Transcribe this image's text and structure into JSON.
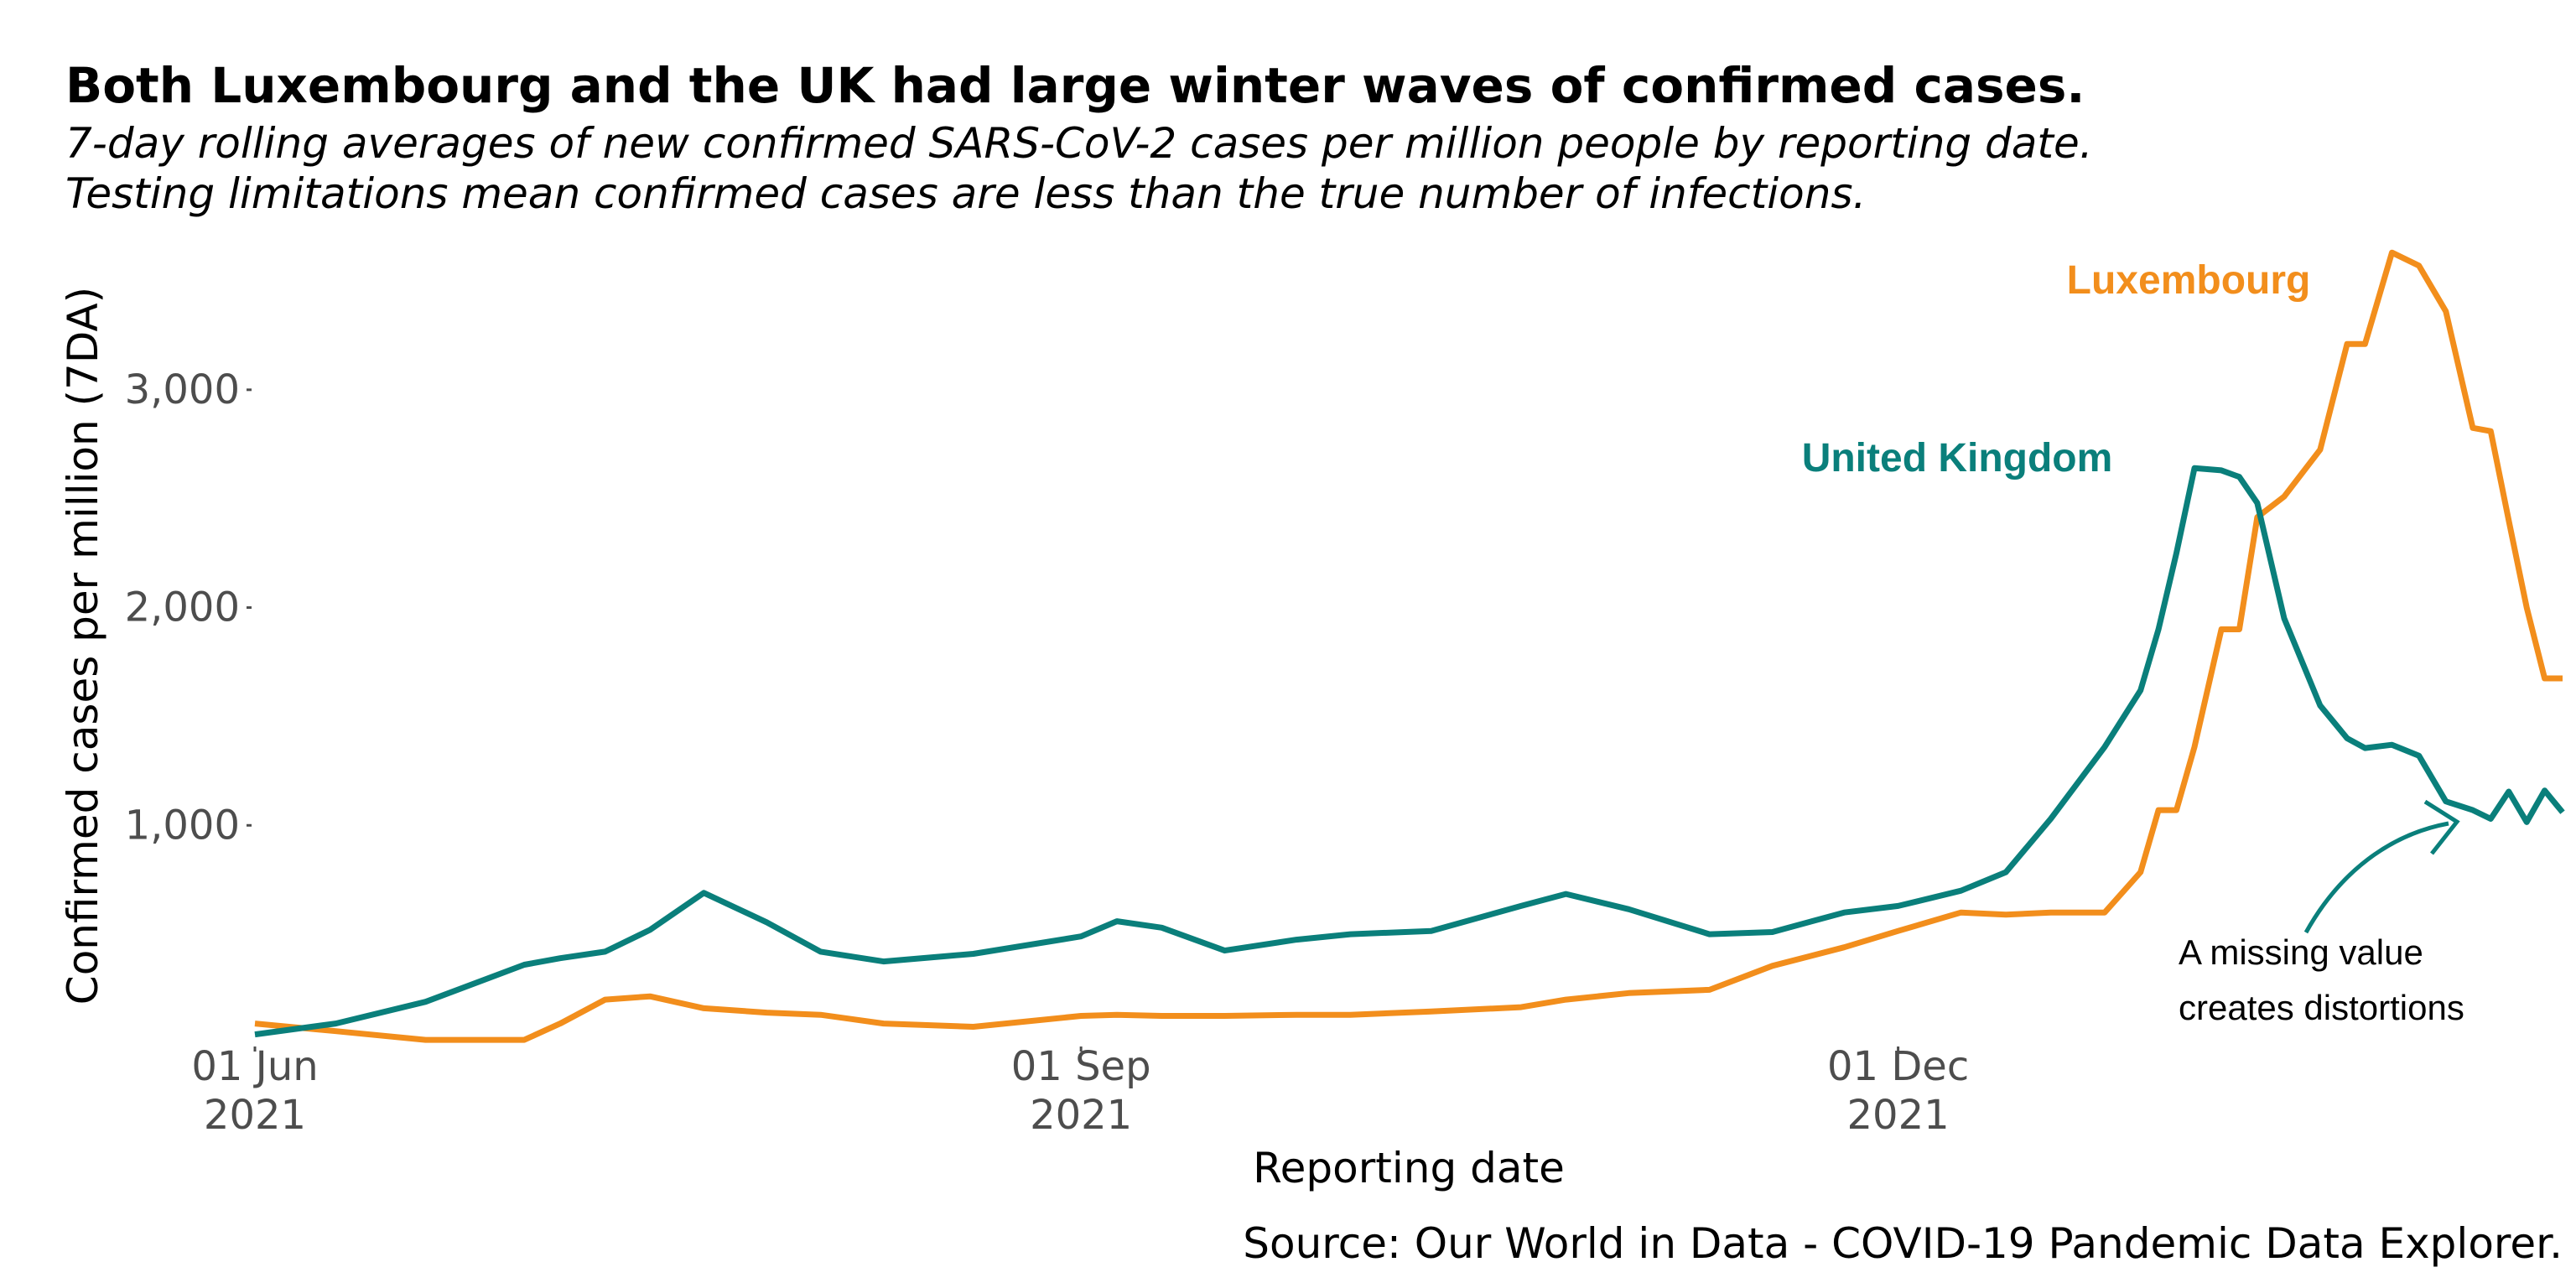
{
  "chart_data": {
    "type": "line",
    "title": "Both Luxembourg and the UK had large winter waves of confirmed cases.",
    "subtitle": [
      "7-day rolling averages of new confirmed SARS-CoV-2 cases per million people by reporting date.",
      "Testing limitations mean confirmed cases are less than the true number of infections."
    ],
    "x_label": "Reporting date",
    "y_label": "Confirmed cases per million (7DA)",
    "source": "Source: Our World in Data - COVID-19 Pandemic Data Explorer.",
    "annotation": [
      "A missing value",
      "creates distortions"
    ],
    "x": [
      "2021-06-01",
      "2021-06-10",
      "2021-06-20",
      "2021-07-01",
      "2021-07-05",
      "2021-07-10",
      "2021-07-15",
      "2021-07-21",
      "2021-07-28",
      "2021-08-03",
      "2021-08-10",
      "2021-08-20",
      "2021-09-01",
      "2021-09-05",
      "2021-09-10",
      "2021-09-17",
      "2021-09-25",
      "2021-10-01",
      "2021-10-10",
      "2021-10-20",
      "2021-10-25",
      "2021-11-01",
      "2021-11-10",
      "2021-11-17",
      "2021-11-25",
      "2021-12-01",
      "2021-12-08",
      "2021-12-13",
      "2021-12-18",
      "2021-12-24",
      "2021-12-28",
      "2021-12-30",
      "2022-01-01",
      "2022-01-03",
      "2022-01-06",
      "2022-01-08",
      "2022-01-10",
      "2022-01-13",
      "2022-01-17",
      "2022-01-20",
      "2022-01-22",
      "2022-01-25",
      "2022-01-28",
      "2022-01-31",
      "2022-02-03",
      "2022-02-05",
      "2022-02-07",
      "2022-02-09",
      "2022-02-11",
      "2022-02-13"
    ],
    "series": [
      {
        "name": "Luxembourg",
        "color": "#f28e1c",
        "values": [
          90,
          55,
          15,
          15,
          90,
          200,
          215,
          160,
          140,
          130,
          90,
          75,
          125,
          130,
          125,
          125,
          130,
          130,
          145,
          165,
          200,
          230,
          245,
          355,
          440,
          515,
          600,
          590,
          600,
          600,
          785,
          1070,
          1070,
          1360,
          1900,
          1900,
          2415,
          2510,
          2725,
          3210,
          3210,
          3630,
          3570,
          3360,
          2825,
          2810,
          2400,
          2000,
          1675,
          1675
        ]
      },
      {
        "name": "United Kingdom",
        "color": "#0a7f7b",
        "values": [
          40,
          90,
          190,
          360,
          390,
          420,
          520,
          690,
          555,
          420,
          375,
          410,
          490,
          560,
          530,
          425,
          475,
          500,
          515,
          630,
          685,
          615,
          500,
          510,
          600,
          630,
          700,
          785,
          1030,
          1360,
          1620,
          1900,
          2250,
          2640,
          2630,
          2600,
          2480,
          1950,
          1550,
          1400,
          1355,
          1370,
          1320,
          1110,
          1070,
          1030,
          1155,
          1015,
          1160,
          1060
        ]
      }
    ],
    "xlim": [
      "2021-06-01",
      "2022-02-13"
    ],
    "xticks": [
      {
        "value": "2021-06-01",
        "label": "01 Jun\n2021"
      },
      {
        "value": "2021-09-01",
        "label": "01 Sep\n2021"
      },
      {
        "value": "2021-12-01",
        "label": "01 Dec\n2021"
      }
    ],
    "ylim": [
      0,
      3650
    ],
    "yticks": [
      {
        "value": 1000,
        "label": "1,000"
      },
      {
        "value": 2000,
        "label": "2,000"
      },
      {
        "value": 3000,
        "label": "3,000"
      }
    ],
    "grid": false
  }
}
